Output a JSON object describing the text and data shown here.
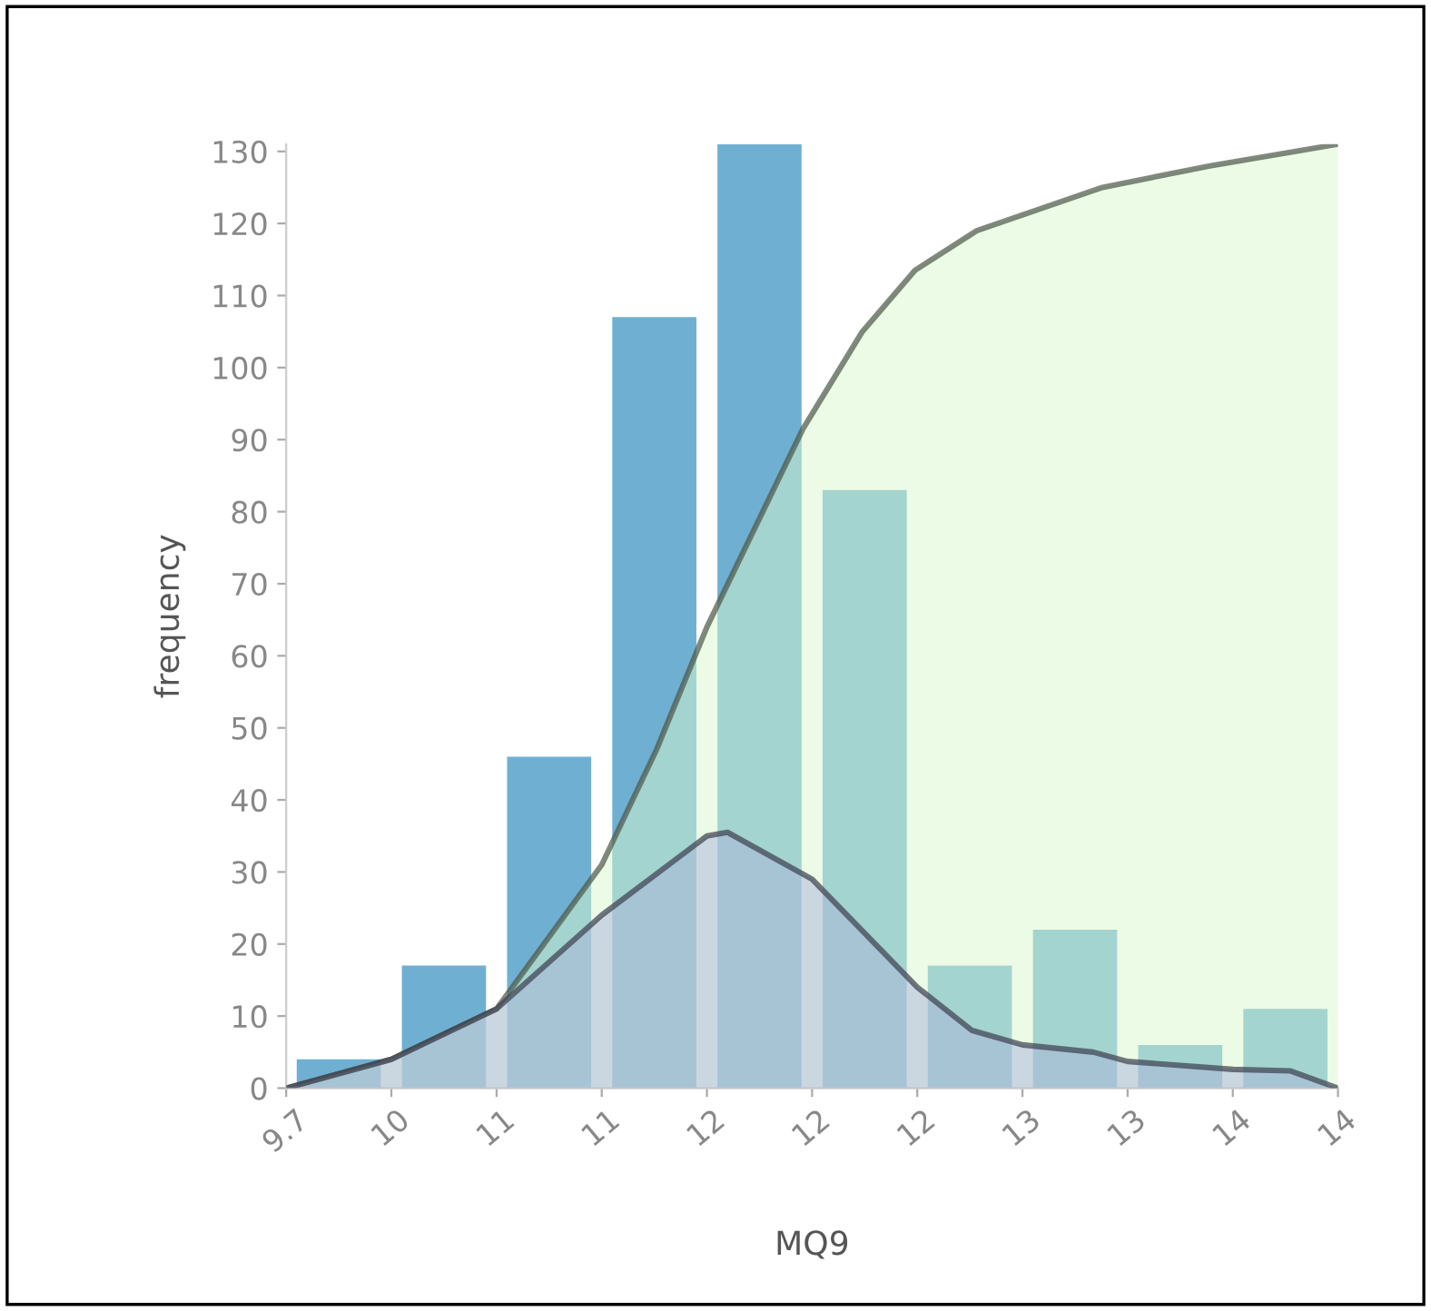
{
  "chart_data": {
    "type": "histogram",
    "xlabel": "MQ9",
    "ylabel": "frequency",
    "bins": [
      9.7,
      10.16,
      10.62,
      11.08,
      11.54,
      12.0,
      12.46,
      12.92,
      13.38,
      13.84,
      14.3
    ],
    "values": [
      4,
      17,
      46,
      107,
      131,
      83,
      17,
      22,
      6,
      11
    ],
    "color": "#6fb0d2",
    "series": [
      {
        "type": "area",
        "color": "#d9f7cc",
        "x": [
          9.7,
          10.16,
          10.62,
          11.08,
          11.32,
          11.54,
          11.96,
          12.22,
          12.45,
          12.72,
          13.27,
          13.74,
          14.3
        ],
        "values": [
          0,
          4,
          11,
          31,
          47,
          64,
          91.5,
          105,
          113.5,
          119,
          125,
          128,
          131
        ]
      },
      {
        "type": "area",
        "color": "#a9b4dc",
        "x": [
          9.7,
          10.16,
          10.62,
          11.08,
          11.54,
          11.63,
          12.0,
          12.46,
          12.7,
          12.92,
          13.23,
          13.38,
          13.84,
          14.09,
          14.3
        ],
        "values": [
          0,
          4,
          11,
          24,
          35,
          35.5,
          29,
          14,
          8,
          6,
          5,
          3.7,
          2.6,
          2.4,
          0
        ]
      }
    ],
    "xlim": [
      9.7,
      14.3
    ],
    "xticks": [
      {
        "value": 9.7,
        "label": "9.7"
      },
      {
        "value": 10.16,
        "label": "10"
      },
      {
        "value": 10.62,
        "label": "11"
      },
      {
        "value": 11.08,
        "label": "11"
      },
      {
        "value": 11.54,
        "label": "12"
      },
      {
        "value": 12.0,
        "label": "12"
      },
      {
        "value": 12.46,
        "label": "12"
      },
      {
        "value": 12.92,
        "label": "13"
      },
      {
        "value": 13.38,
        "label": "13"
      },
      {
        "value": 13.84,
        "label": "14"
      },
      {
        "value": 14.3,
        "label": "14"
      }
    ],
    "ylim": [
      0,
      131
    ],
    "yticks": [
      0,
      10,
      20,
      30,
      40,
      50,
      60,
      70,
      80,
      90,
      100,
      110,
      120,
      130
    ],
    "grid": false
  }
}
